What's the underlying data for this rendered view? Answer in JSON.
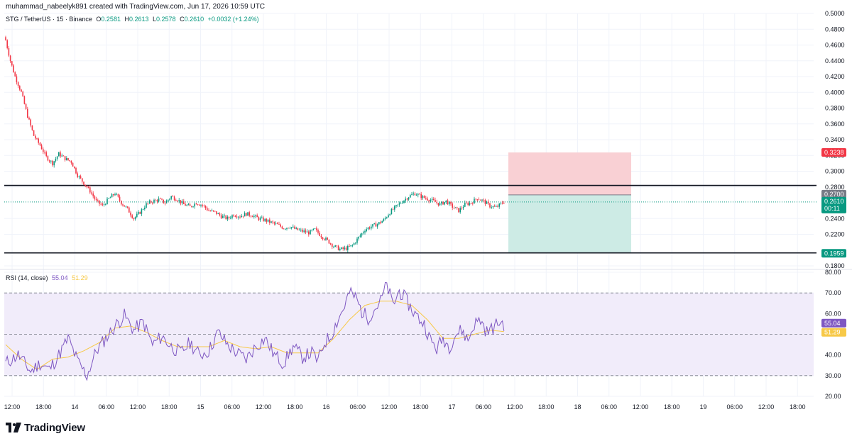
{
  "header": {
    "author_line": "muhammad_nabeelyk891 created with TradingView.com, Jun 17, 2026 10:59 UTC"
  },
  "legend": {
    "symbol": "STG / TetherUS · 15 · Binance",
    "open_label": "O",
    "open": "0.2581",
    "high_label": "H",
    "high": "0.2613",
    "low_label": "L",
    "low": "0.2578",
    "close_label": "C",
    "close": "0.2610",
    "change": "+0.0032 (+1.24%)"
  },
  "rsi_legend": {
    "label": "RSI (14, close)",
    "value": "55.04",
    "ma_value": "51.29"
  },
  "price_tags": {
    "stop": "0.3238",
    "resistance": "0.2700",
    "last": "0.2610",
    "countdown": "00:11",
    "support": "0.1959"
  },
  "rsi_tags": {
    "rsi": "55.04",
    "ma": "51.29"
  },
  "colors": {
    "up": "#089981",
    "down": "#f23645",
    "rsi": "#7e57c2",
    "rsi_ma": "#f7c948",
    "stop_zone": "#f9d0d4",
    "target_zone": "#cdebe5",
    "rsi_band": "#f1ecfa"
  },
  "footer": {
    "brand": "TradingView"
  },
  "chart_data": [
    {
      "type": "candlestick",
      "title": "STG / TetherUS · 15 · Binance",
      "ylim": [
        0.18,
        0.5
      ],
      "y_ticks": [
        "0.5000",
        "0.4800",
        "0.4600",
        "0.4400",
        "0.4200",
        "0.4000",
        "0.3800",
        "0.3600",
        "0.3400",
        "0.3200",
        "0.3000",
        "0.2800",
        "0.2400",
        "0.2200",
        "0.1800"
      ],
      "x_ticks": [
        "12:00",
        "18:00",
        "14",
        "06:00",
        "12:00",
        "18:00",
        "15",
        "06:00",
        "12:00",
        "18:00",
        "16",
        "06:00",
        "12:00",
        "18:00",
        "17",
        "06:00",
        "12:00",
        "18:00",
        "18",
        "06:00",
        "12:00",
        "18:00",
        "19",
        "06:00",
        "12:00",
        "18:00"
      ],
      "horizontal_lines": [
        0.282,
        0.1965
      ],
      "long_position": {
        "entry": 0.27,
        "stop": 0.3238,
        "target": 0.1959
      },
      "last_price": 0.261,
      "close_path": [
        [
          0,
          0.466
        ],
        [
          3,
          0.44
        ],
        [
          6,
          0.42
        ],
        [
          10,
          0.4
        ],
        [
          14,
          0.37
        ],
        [
          18,
          0.345
        ],
        [
          22,
          0.333
        ],
        [
          26,
          0.318
        ],
        [
          30,
          0.31
        ],
        [
          34,
          0.322
        ],
        [
          38,
          0.316
        ],
        [
          42,
          0.312
        ],
        [
          46,
          0.295
        ],
        [
          50,
          0.285
        ],
        [
          54,
          0.275
        ],
        [
          58,
          0.262
        ],
        [
          62,
          0.256
        ],
        [
          66,
          0.265
        ],
        [
          70,
          0.272
        ],
        [
          74,
          0.26
        ],
        [
          78,
          0.252
        ],
        [
          82,
          0.24
        ],
        [
          86,
          0.248
        ],
        [
          90,
          0.258
        ],
        [
          94,
          0.262
        ],
        [
          98,
          0.264
        ],
        [
          102,
          0.26
        ],
        [
          106,
          0.268
        ],
        [
          110,
          0.264
        ],
        [
          114,
          0.258
        ],
        [
          118,
          0.255
        ],
        [
          122,
          0.26
        ],
        [
          126,
          0.257
        ],
        [
          130,
          0.25
        ],
        [
          134,
          0.248
        ],
        [
          138,
          0.243
        ],
        [
          142,
          0.24
        ],
        [
          146,
          0.245
        ],
        [
          150,
          0.243
        ],
        [
          154,
          0.246
        ],
        [
          158,
          0.244
        ],
        [
          162,
          0.24
        ],
        [
          166,
          0.238
        ],
        [
          170,
          0.235
        ],
        [
          174,
          0.232
        ],
        [
          178,
          0.228
        ],
        [
          182,
          0.23
        ],
        [
          186,
          0.226
        ],
        [
          190,
          0.224
        ],
        [
          194,
          0.222
        ],
        [
          198,
          0.226
        ],
        [
          202,
          0.218
        ],
        [
          206,
          0.212
        ],
        [
          210,
          0.205
        ],
        [
          214,
          0.201
        ],
        [
          218,
          0.202
        ],
        [
          222,
          0.206
        ],
        [
          226,
          0.216
        ],
        [
          230,
          0.226
        ],
        [
          234,
          0.23
        ],
        [
          238,
          0.233
        ],
        [
          242,
          0.238
        ],
        [
          246,
          0.248
        ],
        [
          250,
          0.255
        ],
        [
          254,
          0.262
        ],
        [
          258,
          0.268
        ],
        [
          262,
          0.272
        ],
        [
          266,
          0.268
        ],
        [
          270,
          0.265
        ],
        [
          274,
          0.262
        ],
        [
          278,
          0.258
        ],
        [
          282,
          0.262
        ],
        [
          286,
          0.255
        ],
        [
          290,
          0.25
        ],
        [
          294,
          0.258
        ],
        [
          298,
          0.26
        ],
        [
          302,
          0.266
        ],
        [
          306,
          0.262
        ],
        [
          310,
          0.256
        ],
        [
          314,
          0.254
        ],
        [
          318,
          0.26
        ],
        [
          319,
          0.261
        ]
      ]
    },
    {
      "type": "line",
      "title": "RSI (14, close)",
      "ylim": [
        20,
        80
      ],
      "y_ticks": [
        "80.00",
        "70.00",
        "60.00",
        "50.00",
        "40.00",
        "30.00",
        "20.00"
      ],
      "bands": {
        "upper": 70,
        "middle": 50,
        "lower": 30
      },
      "series": [
        {
          "name": "RSI",
          "last": 55.04,
          "path": [
            [
              0,
              36
            ],
            [
              8,
              40
            ],
            [
              16,
              32
            ],
            [
              22,
              36
            ],
            [
              28,
              33
            ],
            [
              34,
              40
            ],
            [
              40,
              48
            ],
            [
              46,
              37
            ],
            [
              52,
              30
            ],
            [
              58,
              42
            ],
            [
              64,
              48
            ],
            [
              70,
              54
            ],
            [
              76,
              59
            ],
            [
              82,
              52
            ],
            [
              88,
              56
            ],
            [
              94,
              45
            ],
            [
              100,
              49
            ],
            [
              106,
              44
            ],
            [
              112,
              41
            ],
            [
              118,
              46
            ],
            [
              124,
              40
            ],
            [
              130,
              42
            ],
            [
              136,
              51
            ],
            [
              142,
              45
            ],
            [
              148,
              41
            ],
            [
              154,
              38
            ],
            [
              160,
              44
            ],
            [
              166,
              48
            ],
            [
              172,
              40
            ],
            [
              178,
              36
            ],
            [
              184,
              44
            ],
            [
              190,
              39
            ],
            [
              196,
              41
            ],
            [
              200,
              37
            ],
            [
              204,
              46
            ],
            [
              208,
              49
            ],
            [
              212,
              56
            ],
            [
              216,
              62
            ],
            [
              220,
              70
            ],
            [
              224,
              68
            ],
            [
              228,
              61
            ],
            [
              232,
              58
            ],
            [
              236,
              62
            ],
            [
              240,
              66
            ],
            [
              244,
              74
            ],
            [
              248,
              64
            ],
            [
              252,
              71
            ],
            [
              256,
              67
            ],
            [
              260,
              62
            ],
            [
              264,
              58
            ],
            [
              268,
              55
            ],
            [
              272,
              47
            ],
            [
              276,
              43
            ],
            [
              280,
              48
            ],
            [
              284,
              44
            ],
            [
              288,
              50
            ],
            [
              292,
              52
            ],
            [
              296,
              47
            ],
            [
              300,
              55
            ],
            [
              304,
              57
            ],
            [
              308,
              51
            ],
            [
              312,
              53
            ],
            [
              316,
              56
            ],
            [
              319,
              55.04
            ]
          ]
        },
        {
          "name": "RSI-based MA",
          "last": 51.29,
          "path": [
            [
              0,
              45
            ],
            [
              10,
              38
            ],
            [
              20,
              33
            ],
            [
              30,
              38
            ],
            [
              40,
              39
            ],
            [
              50,
              42
            ],
            [
              60,
              46
            ],
            [
              70,
              53
            ],
            [
              80,
              54
            ],
            [
              90,
              51
            ],
            [
              100,
              47
            ],
            [
              110,
              44
            ],
            [
              120,
              44
            ],
            [
              130,
              44
            ],
            [
              140,
              47
            ],
            [
              150,
              44
            ],
            [
              160,
              43
            ],
            [
              170,
              44
            ],
            [
              180,
              41
            ],
            [
              190,
              41
            ],
            [
              200,
              41
            ],
            [
              210,
              48
            ],
            [
              220,
              57
            ],
            [
              230,
              64
            ],
            [
              240,
              66
            ],
            [
              250,
              66
            ],
            [
              260,
              64
            ],
            [
              270,
              57
            ],
            [
              280,
              48
            ],
            [
              290,
              48
            ],
            [
              300,
              50
            ],
            [
              310,
              52
            ],
            [
              319,
              51.29
            ]
          ]
        }
      ]
    }
  ]
}
